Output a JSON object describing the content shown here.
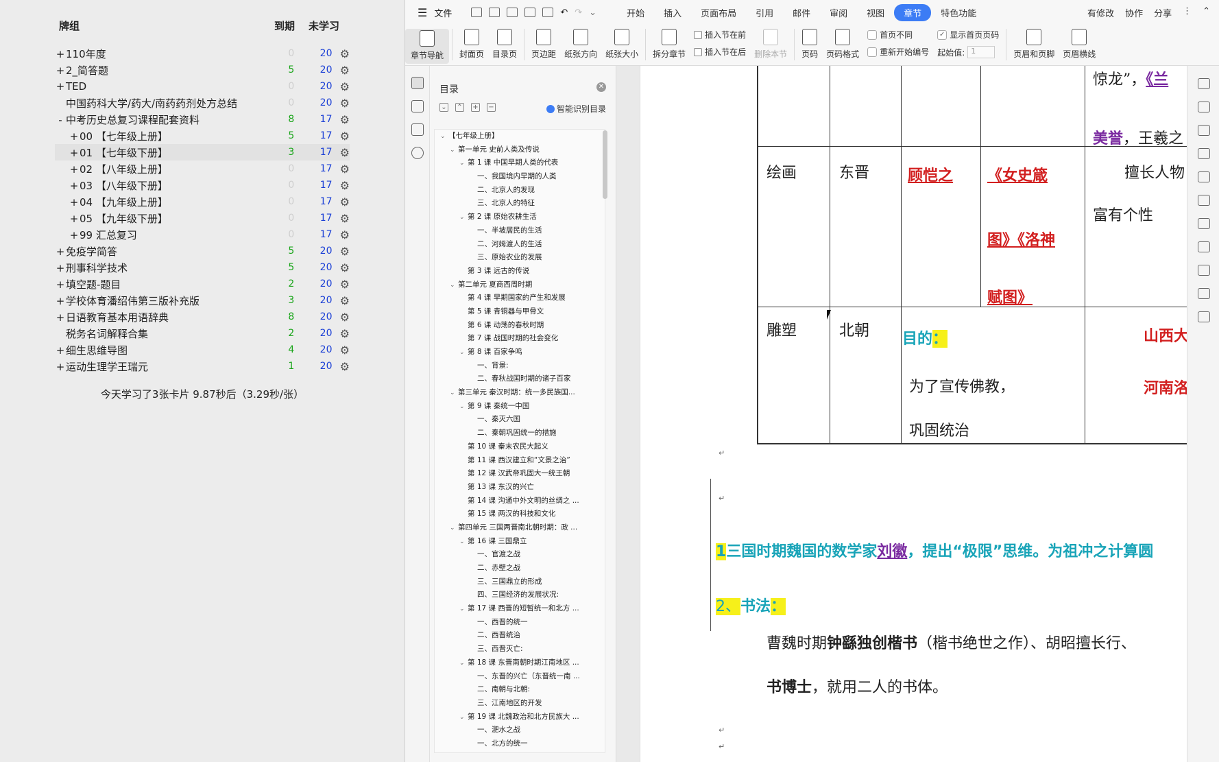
{
  "anki": {
    "headers": {
      "deck": "牌组",
      "due": "到期",
      "new": "未学习"
    },
    "decks": [
      {
        "exp": "+",
        "name": "110年度",
        "indent": 0,
        "due": "0",
        "new": "20"
      },
      {
        "exp": "+",
        "name": "2_简答题",
        "indent": 0,
        "due": "5",
        "new": "20"
      },
      {
        "exp": "+",
        "name": "TED",
        "indent": 0,
        "due": "0",
        "new": "20"
      },
      {
        "exp": "",
        "name": "中国药科大学/药大/南药药剂处方总结",
        "indent": 0,
        "due": "0",
        "new": "20"
      },
      {
        "exp": "-",
        "name": "中考历史总复习课程配套资料",
        "indent": 0,
        "due": "8",
        "new": "17"
      },
      {
        "exp": "+",
        "name": "00 【七年级上册】",
        "indent": 1,
        "due": "5",
        "new": "17"
      },
      {
        "exp": "+",
        "name": "01 【七年级下册】",
        "indent": 1,
        "due": "3",
        "new": "17",
        "selected": true
      },
      {
        "exp": "+",
        "name": "02 【八年级上册】",
        "indent": 1,
        "due": "0",
        "new": "17"
      },
      {
        "exp": "+",
        "name": "03 【八年级下册】",
        "indent": 1,
        "due": "0",
        "new": "17"
      },
      {
        "exp": "+",
        "name": "04 【九年级上册】",
        "indent": 1,
        "due": "0",
        "new": "17"
      },
      {
        "exp": "+",
        "name": "05 【九年级下册】",
        "indent": 1,
        "due": "0",
        "new": "17"
      },
      {
        "exp": "+",
        "name": "99 汇总复习",
        "indent": 1,
        "due": "0",
        "new": "17"
      },
      {
        "exp": "+",
        "name": "免疫学简答",
        "indent": 0,
        "due": "5",
        "new": "20"
      },
      {
        "exp": "+",
        "name": "刑事科学技术",
        "indent": 0,
        "due": "5",
        "new": "20"
      },
      {
        "exp": "+",
        "name": "填空题-题目",
        "indent": 0,
        "due": "2",
        "new": "20"
      },
      {
        "exp": "+",
        "name": "学校体育潘绍伟第三版补充版",
        "indent": 0,
        "due": "3",
        "new": "20"
      },
      {
        "exp": "+",
        "name": "日语教育基本用语辞典",
        "indent": 0,
        "due": "8",
        "new": "20"
      },
      {
        "exp": "",
        "name": "税务名词解释合集",
        "indent": 0,
        "due": "2",
        "new": "20"
      },
      {
        "exp": "+",
        "name": "细生思维导图",
        "indent": 0,
        "due": "4",
        "new": "20"
      },
      {
        "exp": "+",
        "name": "运动生理学王瑞元",
        "indent": 0,
        "due": "1",
        "new": "20"
      }
    ],
    "stats": "今天学习了3张卡片 9.87秒后（3.29秒/张）"
  },
  "wps": {
    "menu": {
      "file": "文件",
      "tabs": [
        "开始",
        "插入",
        "页面布局",
        "引用",
        "邮件",
        "审阅",
        "视图",
        "章节",
        "特色功能"
      ],
      "active_tab": "章节",
      "right": [
        "有修改",
        "协作",
        "分享"
      ]
    },
    "ribbon": {
      "nav": "章节导航",
      "cover": "封面页",
      "toc_page": "目录页",
      "margin": "页边距",
      "orientation": "纸张方向",
      "size": "纸张大小",
      "split": "拆分章节",
      "insert_before": "插入节在前",
      "insert_after": "插入节在后",
      "delete_section": "删除本节",
      "page_num": "页码",
      "page_num_format": "页码格式",
      "first_diff": "首页不同",
      "restart_num": "重新开始编号",
      "show_first": "显示首页页码",
      "start_value_label": "起始值:",
      "start_value": "1",
      "header_footer": "页眉和页脚",
      "header_line": "页眉横线"
    },
    "toc": {
      "title": "目录",
      "smart": "智能识别目录",
      "items": [
        {
          "lvl": 0,
          "car": "v",
          "text": "【七年级上册】"
        },
        {
          "lvl": 1,
          "car": "v",
          "text": "第一单元 史前人类及传说"
        },
        {
          "lvl": 2,
          "car": "v",
          "text": "第 1 课 中国早期人类的代表"
        },
        {
          "lvl": 3,
          "car": "",
          "text": "一、我国境内早期的人类"
        },
        {
          "lvl": 3,
          "car": "",
          "text": "二、北京人的发现"
        },
        {
          "lvl": 3,
          "car": "",
          "text": "三、北京人的特征"
        },
        {
          "lvl": 2,
          "car": "v",
          "text": "第 2 课 原始农耕生活"
        },
        {
          "lvl": 3,
          "car": "",
          "text": "一、半坡居民的生活"
        },
        {
          "lvl": 3,
          "car": "",
          "text": "二、河姆渡人的生活"
        },
        {
          "lvl": 3,
          "car": "",
          "text": "三、原始农业的发展"
        },
        {
          "lvl": 2,
          "car": "",
          "text": "第 3 课 远古的传说"
        },
        {
          "lvl": 1,
          "car": "v",
          "text": "第二单元 夏商西周时期"
        },
        {
          "lvl": 2,
          "car": "",
          "text": "第 4 课 早期国家的产生和发展"
        },
        {
          "lvl": 2,
          "car": "",
          "text": "第 5 课 青铜器与甲骨文"
        },
        {
          "lvl": 2,
          "car": "",
          "text": "第 6 课 动荡的春秋时期"
        },
        {
          "lvl": 2,
          "car": "",
          "text": "第 7 课 战国时期的社会变化"
        },
        {
          "lvl": 2,
          "car": "v",
          "text": "第 8 课 百家争鸣"
        },
        {
          "lvl": 3,
          "car": "",
          "text": "一、背景:"
        },
        {
          "lvl": 3,
          "car": "",
          "text": "二、春秋战国时期的诸子百家"
        },
        {
          "lvl": 1,
          "car": "v",
          "text": "第三单元 秦汉时期：统一多民族国..."
        },
        {
          "lvl": 2,
          "car": "v",
          "text": "第 9 课 秦统一中国"
        },
        {
          "lvl": 3,
          "car": "",
          "text": "一、秦灭六国"
        },
        {
          "lvl": 3,
          "car": "",
          "text": "二、秦朝巩固统一的措施"
        },
        {
          "lvl": 2,
          "car": "",
          "text": "第 10 课 秦末农民大起义"
        },
        {
          "lvl": 2,
          "car": "",
          "text": "第 11 课 西汉建立和“文景之治”"
        },
        {
          "lvl": 2,
          "car": "",
          "text": "第 12 课 汉武帝巩固大一统王朝"
        },
        {
          "lvl": 2,
          "car": "",
          "text": "第 13 课 东汉的兴亡"
        },
        {
          "lvl": 2,
          "car": "",
          "text": "第 14 课 沟通中外文明的丝绸之 ..."
        },
        {
          "lvl": 2,
          "car": "",
          "text": "第 15 课 两汉的科技和文化"
        },
        {
          "lvl": 1,
          "car": "v",
          "text": "第四单元 三国两晋南北朝时期：政 ..."
        },
        {
          "lvl": 2,
          "car": "v",
          "text": "第 16 课 三国鼎立"
        },
        {
          "lvl": 3,
          "car": "",
          "text": "一、官渡之战"
        },
        {
          "lvl": 3,
          "car": "",
          "text": "二、赤壁之战"
        },
        {
          "lvl": 3,
          "car": "",
          "text": "三、三国鼎立的形成"
        },
        {
          "lvl": 3,
          "car": "",
          "text": "四、三国经济的发展状况:"
        },
        {
          "lvl": 2,
          "car": "v",
          "text": "第 17 课 西晋的短暂统一和北方 ..."
        },
        {
          "lvl": 3,
          "car": "",
          "text": "一、西晋的统一"
        },
        {
          "lvl": 3,
          "car": "",
          "text": "二、西晋统治"
        },
        {
          "lvl": 3,
          "car": "",
          "text": "三、西晋灭亡:"
        },
        {
          "lvl": 2,
          "car": "v",
          "text": "第 18 课 东晋南朝时期江南地区 ..."
        },
        {
          "lvl": 3,
          "car": "",
          "text": "一、东晋的兴亡（东晋统一南 ..."
        },
        {
          "lvl": 3,
          "car": "",
          "text": "二、南朝与北朝:"
        },
        {
          "lvl": 3,
          "car": "",
          "text": "三、江南地区的开发"
        },
        {
          "lvl": 2,
          "car": "v",
          "text": "第 19 课 北魏政治和北方民族大 ..."
        },
        {
          "lvl": 3,
          "car": "",
          "text": "一、淝水之战"
        },
        {
          "lvl": 3,
          "car": "",
          "text": "一、北方的统一"
        }
      ]
    },
    "doc": {
      "top_text": "惊龙”，",
      "top_link": "《兰",
      "r1c5_a": "美誉",
      "r1c5_b": "，王羲之",
      "row2": {
        "c1": "绘画",
        "c2": "东晋",
        "c3": "顾恺之",
        "c4a": "《女史箴",
        "c4b": "图》《洛神",
        "c4c": "赋图》",
        "c5a": "擅长人物",
        "c5b": "富有个性"
      },
      "row3": {
        "c1": "雕塑",
        "c2": "北朝",
        "purpose": "目的",
        "colon": "：",
        "line1": "为了宣传佛教，",
        "line2": "巩固统治",
        "c5a": "山西大",
        "c5b": "河南洛"
      },
      "p1_num": "1",
      "p1_text_a": "三国时期魏国的数学家",
      "p1_name": "刘徽",
      "p1_text_b": "，提出“极限”思维。为祖冲之计算圆",
      "p2_num": "2、",
      "p2_text": "书法",
      "p2_colon": "：",
      "p3_a": "曹魏时期",
      "p3_b": "钟繇独创楷书",
      "p3_c": "（楷书绝世之作）、胡昭擅长行、",
      "p4_a": "书博士",
      "p4_b": "，就用二人的书体。"
    }
  }
}
